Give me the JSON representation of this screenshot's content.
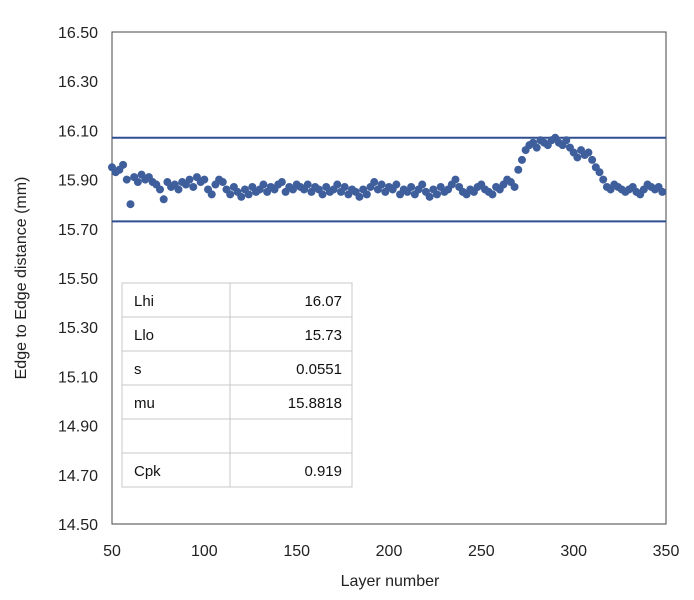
{
  "chart_data": {
    "type": "scatter",
    "title": "",
    "xlabel": "Layer number",
    "ylabel": "Edge to Edge distance (mm)",
    "xlim": [
      50,
      350
    ],
    "ylim": [
      14.5,
      16.5
    ],
    "x_ticks": [
      "50",
      "100",
      "150",
      "200",
      "250",
      "300",
      "350"
    ],
    "y_ticks": [
      "14.50",
      "14.70",
      "14.90",
      "15.10",
      "15.30",
      "15.50",
      "15.70",
      "15.90",
      "16.10",
      "16.30",
      "16.50"
    ],
    "grid": false,
    "legend": "none",
    "marker_color": "#3e5e9c",
    "limit_line_color": "#2f4f91",
    "limit_lines": [
      16.07,
      15.73
    ],
    "series": [
      {
        "x": [
          50,
          52,
          54,
          56,
          58,
          60,
          62,
          64,
          66,
          68,
          70,
          72,
          74,
          76,
          78,
          80,
          82,
          84,
          86,
          88,
          90,
          92,
          94,
          96,
          98,
          100,
          102,
          104,
          106,
          108,
          110,
          112,
          114,
          116,
          118,
          120,
          122,
          124,
          126,
          128,
          130,
          132,
          134,
          136,
          138,
          140,
          142,
          144,
          146,
          148,
          150,
          152,
          154,
          156,
          158,
          160,
          162,
          164,
          166,
          168,
          170,
          172,
          174,
          176,
          178,
          180,
          182,
          184,
          186,
          188,
          190,
          192,
          194,
          196,
          198,
          200,
          202,
          204,
          206,
          208,
          210,
          212,
          214,
          216,
          218,
          220,
          222,
          224,
          226,
          228,
          230,
          232,
          234,
          236,
          238,
          240,
          242,
          244,
          246,
          248,
          250,
          252,
          254,
          256,
          258,
          260,
          262,
          264,
          266,
          268,
          270,
          272,
          274,
          276,
          278,
          280,
          282,
          284,
          286,
          288,
          290,
          292,
          294,
          296,
          298,
          300,
          302,
          304,
          306,
          308,
          310,
          312,
          314,
          316,
          318,
          320,
          322,
          324,
          326,
          328,
          330,
          332,
          334,
          336,
          338,
          340,
          342,
          344,
          346,
          348
        ],
        "y": [
          15.95,
          15.93,
          15.94,
          15.96,
          15.9,
          15.8,
          15.91,
          15.89,
          15.92,
          15.9,
          15.91,
          15.89,
          15.88,
          15.86,
          15.82,
          15.89,
          15.87,
          15.88,
          15.86,
          15.89,
          15.88,
          15.9,
          15.87,
          15.91,
          15.89,
          15.9,
          15.86,
          15.84,
          15.88,
          15.9,
          15.89,
          15.86,
          15.84,
          15.87,
          15.85,
          15.83,
          15.86,
          15.84,
          15.87,
          15.85,
          15.86,
          15.88,
          15.85,
          15.87,
          15.86,
          15.88,
          15.89,
          15.85,
          15.87,
          15.86,
          15.88,
          15.87,
          15.86,
          15.88,
          15.85,
          15.87,
          15.86,
          15.84,
          15.87,
          15.85,
          15.86,
          15.88,
          15.85,
          15.87,
          15.84,
          15.86,
          15.85,
          15.83,
          15.86,
          15.84,
          15.87,
          15.89,
          15.86,
          15.88,
          15.85,
          15.87,
          15.86,
          15.88,
          15.84,
          15.86,
          15.85,
          15.87,
          15.84,
          15.86,
          15.88,
          15.85,
          15.83,
          15.86,
          15.84,
          15.87,
          15.85,
          15.86,
          15.88,
          15.9,
          15.87,
          15.85,
          15.84,
          15.86,
          15.85,
          15.87,
          15.88,
          15.86,
          15.85,
          15.84,
          15.87,
          15.86,
          15.88,
          15.9,
          15.89,
          15.87,
          15.94,
          15.98,
          16.02,
          16.04,
          16.05,
          16.03,
          16.06,
          16.05,
          16.04,
          16.06,
          16.07,
          16.05,
          16.04,
          16.06,
          16.03,
          16.01,
          15.99,
          16.02,
          16.0,
          16.01,
          15.98,
          15.95,
          15.93,
          15.9,
          15.87,
          15.86,
          15.88,
          15.87,
          15.86,
          15.85,
          15.86,
          15.87,
          15.85,
          15.84,
          15.86,
          15.88,
          15.87,
          15.86,
          15.87,
          15.85
        ]
      }
    ],
    "stats_table": {
      "rows": [
        {
          "label": "Lhi",
          "value": "16.07"
        },
        {
          "label": "Llo",
          "value": "15.73"
        },
        {
          "label": "s",
          "value": "0.0551"
        },
        {
          "label": "mu",
          "value": "15.8818"
        },
        {
          "label": "",
          "value": ""
        },
        {
          "label": "Cpk",
          "value": "0.919"
        }
      ]
    }
  }
}
